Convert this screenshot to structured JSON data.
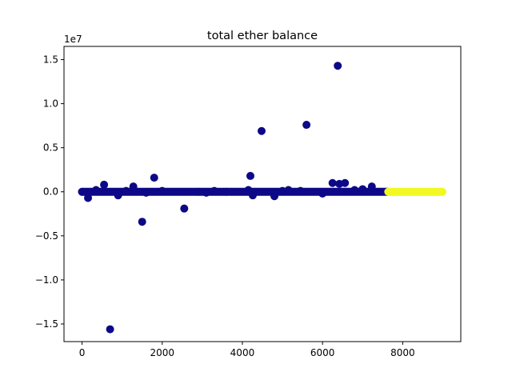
{
  "chart_data": {
    "type": "scatter",
    "title": "total ether balance",
    "xlabel": "",
    "ylabel": "",
    "y_offset_label": "1e7",
    "xlim": [
      -450,
      9450
    ],
    "ylim": [
      -1.7,
      1.65
    ],
    "x_ticks": [
      0,
      2000,
      4000,
      6000,
      8000
    ],
    "x_tick_labels": [
      "0",
      "2000",
      "4000",
      "6000",
      "8000"
    ],
    "y_ticks": [
      -1.5,
      -1.0,
      -0.5,
      0.0,
      0.5,
      1.0,
      1.5
    ],
    "y_tick_labels": [
      "−1.5",
      "−1.0",
      "−0.5",
      "0.0",
      "0.5",
      "1.0",
      "1.5"
    ],
    "grid": false,
    "legend": "none",
    "series": [
      {
        "color": "#0d0887",
        "band": {
          "x_start": 0,
          "x_end": 7620,
          "y": 0.0
        },
        "x": [
          0,
          150,
          350,
          550,
          700,
          900,
          1100,
          1280,
          1500,
          1600,
          1800,
          2000,
          2550,
          2900,
          3100,
          3300,
          3600,
          4150,
          4200,
          4260,
          4480,
          4800,
          5000,
          5150,
          5450,
          5600,
          6000,
          6250,
          6380,
          6420,
          6560,
          6800,
          7000,
          7230
        ],
        "y": [
          0.0,
          -0.07,
          0.02,
          0.08,
          -1.56,
          -0.04,
          0.01,
          0.06,
          -0.34,
          -0.01,
          0.16,
          0.01,
          -0.19,
          0.0,
          -0.01,
          0.01,
          0.0,
          0.02,
          0.18,
          -0.04,
          0.69,
          -0.05,
          0.01,
          0.02,
          0.01,
          0.76,
          -0.02,
          0.1,
          1.43,
          0.09,
          0.1,
          0.02,
          0.03,
          0.06
        ]
      },
      {
        "color": "#f0f921",
        "band": {
          "x_start": 7640,
          "x_end": 8990,
          "y": 0.0
        },
        "x": [],
        "y": []
      }
    ]
  }
}
